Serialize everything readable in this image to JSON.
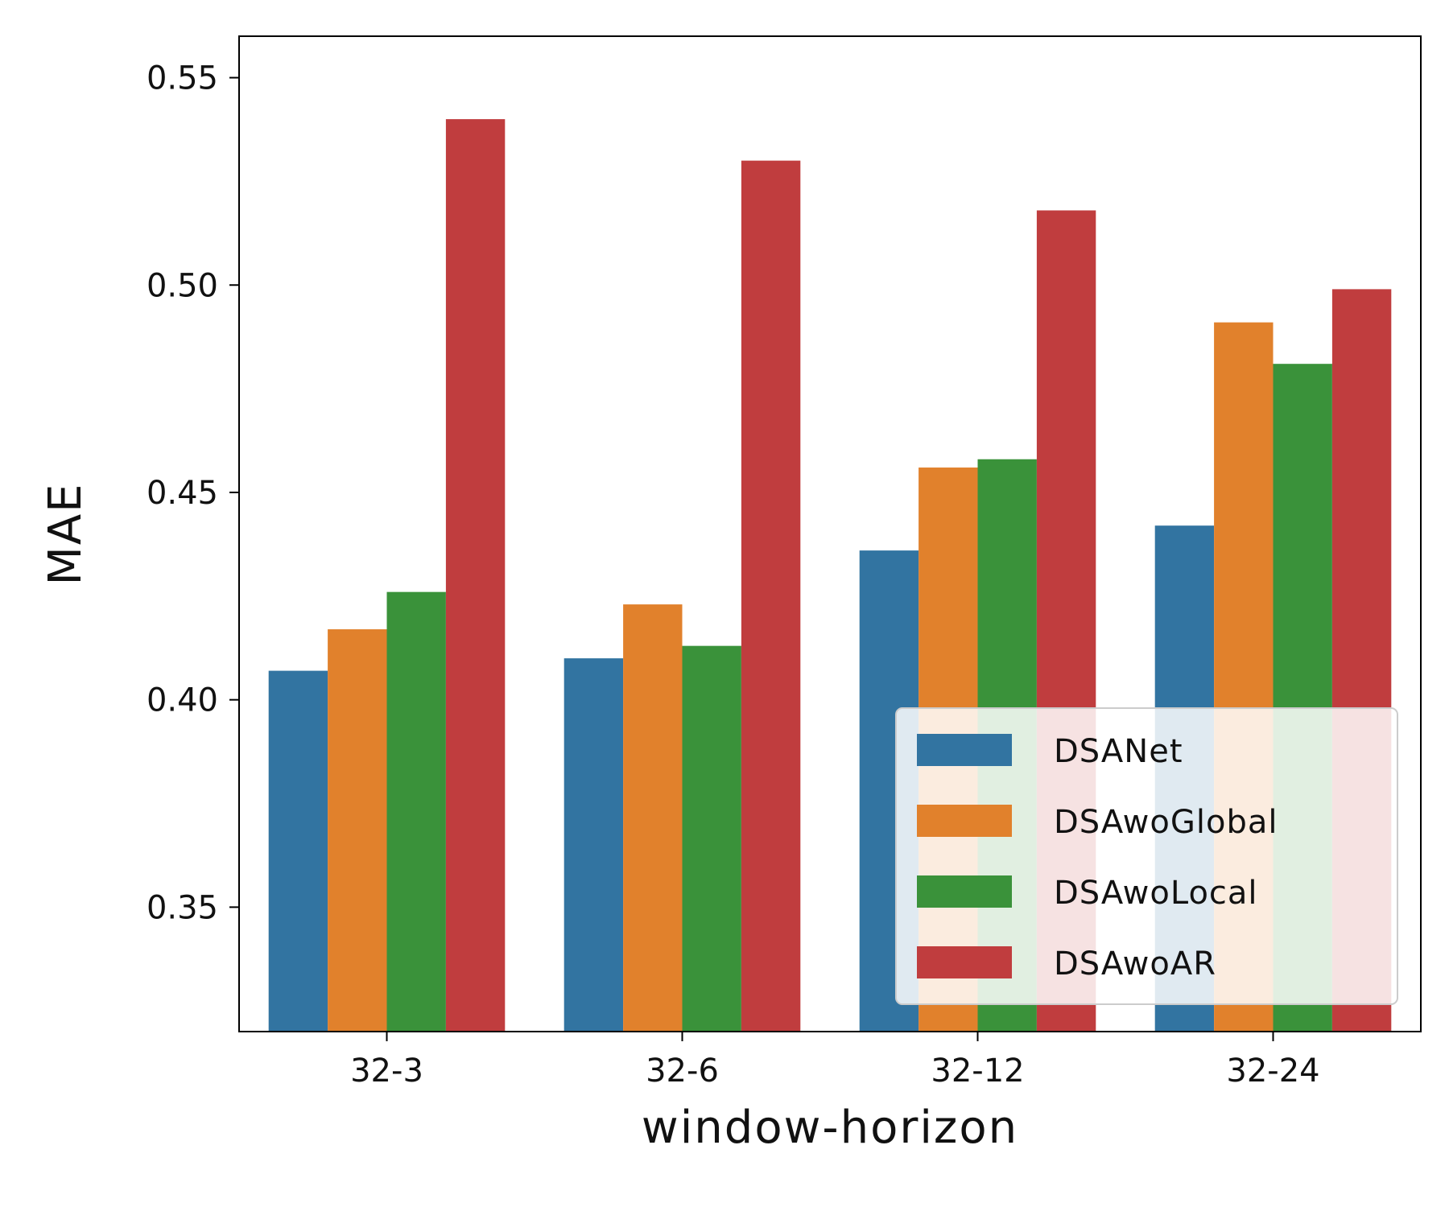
{
  "chart_data": {
    "type": "bar",
    "title": "",
    "xlabel": "window-horizon",
    "ylabel": "MAE",
    "categories": [
      "32-3",
      "32-6",
      "32-12",
      "32-24"
    ],
    "ylim": [
      0.32,
      0.56
    ],
    "yticks": [
      0.35,
      0.4,
      0.45,
      0.5,
      0.55
    ],
    "ytick_labels": [
      "0.35",
      "0.40",
      "0.45",
      "0.50",
      "0.55"
    ],
    "grid": false,
    "legend_position": "lower-right",
    "series": [
      {
        "name": "DSANet",
        "color": "#3274a1",
        "values": [
          0.407,
          0.41,
          0.436,
          0.442
        ]
      },
      {
        "name": "DSAwoGlobal",
        "color": "#e1812c",
        "values": [
          0.417,
          0.423,
          0.456,
          0.491
        ]
      },
      {
        "name": "DSAwoLocal",
        "color": "#3a923a",
        "values": [
          0.426,
          0.413,
          0.458,
          0.481
        ]
      },
      {
        "name": "DSAwoAR",
        "color": "#c03d3e",
        "values": [
          0.54,
          0.53,
          0.518,
          0.499
        ]
      }
    ]
  }
}
